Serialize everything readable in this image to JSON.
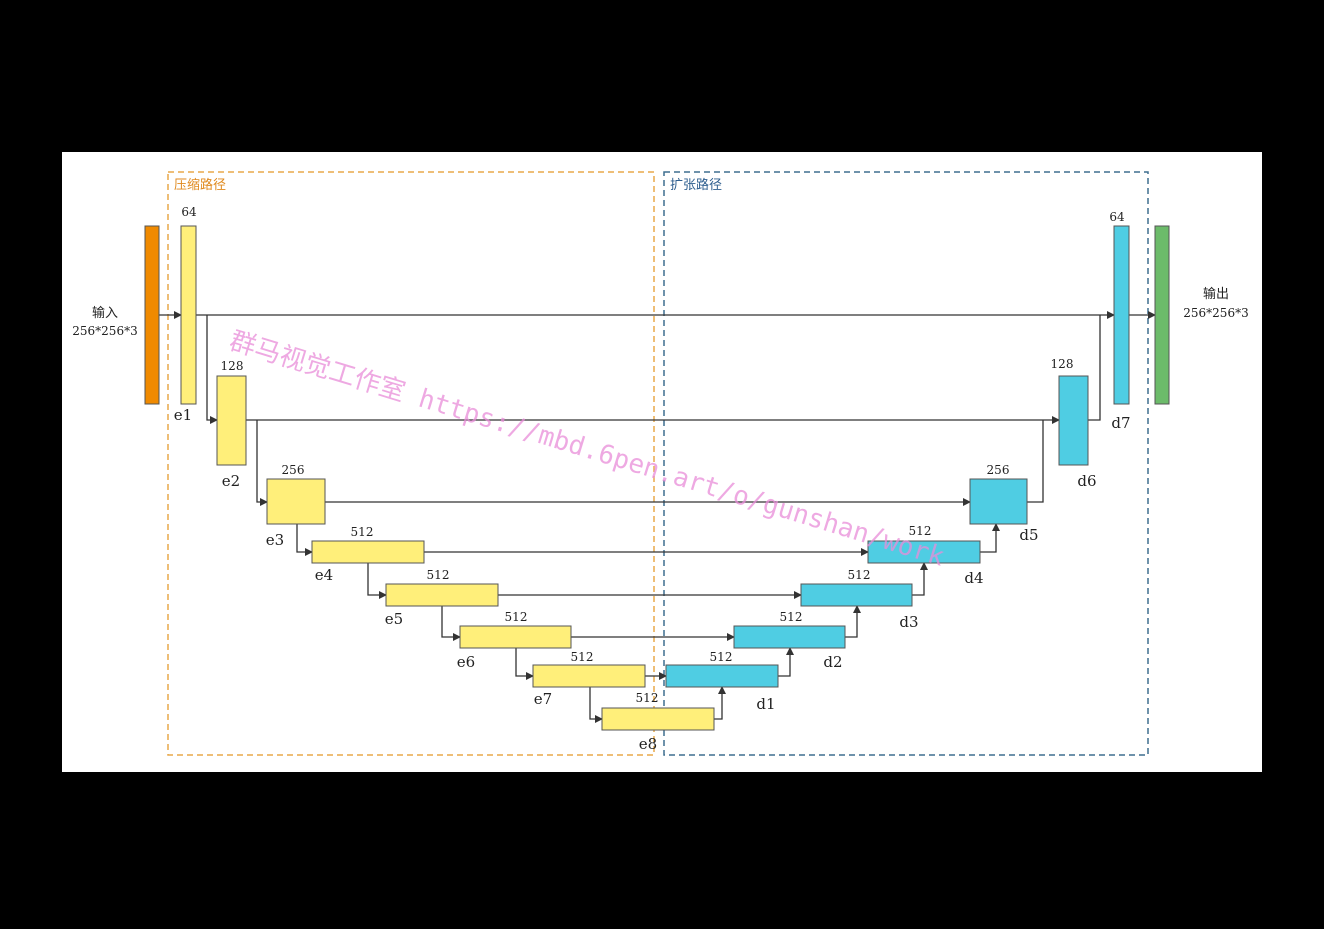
{
  "colors": {
    "input_block": "#f08a00",
    "encoder_block": "#ffef7a",
    "decoder_block": "#4fcde3",
    "output_block": "#6cbb6a",
    "contract_border": "#e9a94a",
    "expand_border": "#3f6f8f",
    "contract_label": "#e08a1f",
    "expand_label": "#2f5f8f",
    "line": "#333333",
    "watermark": "#e88cd8"
  },
  "regions": {
    "contract_label": "压缩路径",
    "expand_label": "扩张路径"
  },
  "input": {
    "label": "输入",
    "size": "256*256*3"
  },
  "output": {
    "label": "输出",
    "size": "256*256*3"
  },
  "encoder": [
    {
      "id": "e1",
      "channels": "64"
    },
    {
      "id": "e2",
      "channels": "128"
    },
    {
      "id": "e3",
      "channels": "256"
    },
    {
      "id": "e4",
      "channels": "512"
    },
    {
      "id": "e5",
      "channels": "512"
    },
    {
      "id": "e6",
      "channels": "512"
    },
    {
      "id": "e7",
      "channels": "512"
    },
    {
      "id": "e8",
      "channels": "512"
    }
  ],
  "decoder": [
    {
      "id": "d1",
      "channels": "512"
    },
    {
      "id": "d2",
      "channels": "512"
    },
    {
      "id": "d3",
      "channels": "512"
    },
    {
      "id": "d4",
      "channels": "512"
    },
    {
      "id": "d5",
      "channels": "256"
    },
    {
      "id": "d6",
      "channels": "128"
    },
    {
      "id": "d7",
      "channels": "64"
    }
  ],
  "watermark": "群马视觉工作室 https://mbd.6pen.art/o/gunshan/work"
}
